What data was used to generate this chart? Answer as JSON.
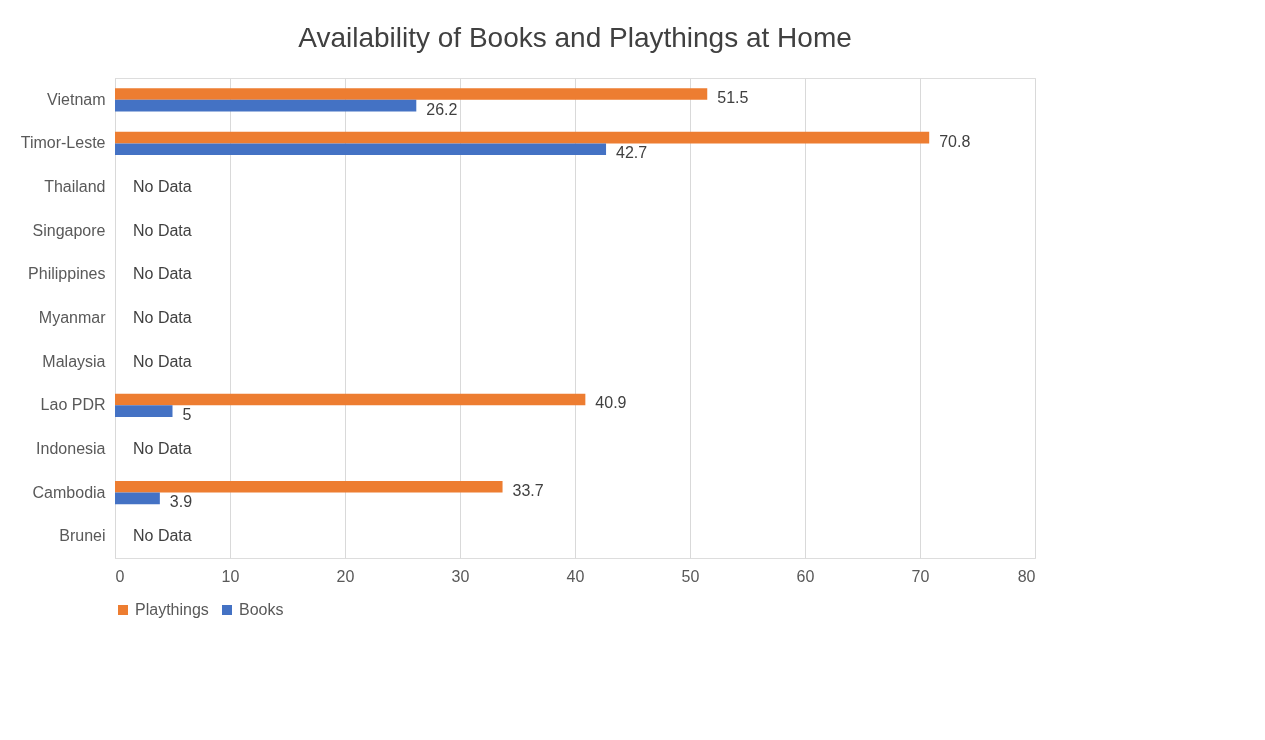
{
  "chart_data": {
    "type": "bar",
    "orientation": "horizontal",
    "title": "Availability of Books and Playthings at Home",
    "categories": [
      "Vietnam",
      "Timor-Leste",
      "Thailand",
      "Singapore",
      "Philippines",
      "Myanmar",
      "Malaysia",
      "Lao PDR",
      "Indonesia",
      "Cambodia",
      "Brunei"
    ],
    "series": [
      {
        "name": "Playthings",
        "color": "#ed7d31",
        "values": [
          51.5,
          70.8,
          null,
          null,
          null,
          null,
          null,
          40.9,
          null,
          33.7,
          null
        ]
      },
      {
        "name": "Books",
        "color": "#4472c4",
        "values": [
          26.2,
          42.7,
          null,
          null,
          null,
          null,
          null,
          5,
          null,
          3.9,
          null
        ]
      }
    ],
    "annotations": [
      "No Data",
      "No Data",
      "No Data",
      "No Data",
      "No Data",
      "No Data",
      "No Data"
    ],
    "xlim": [
      0,
      80
    ],
    "xticks": [
      0,
      10,
      20,
      30,
      40,
      50,
      60,
      70,
      80
    ],
    "data_labels": true,
    "grid": "x",
    "legend": "bottom"
  }
}
